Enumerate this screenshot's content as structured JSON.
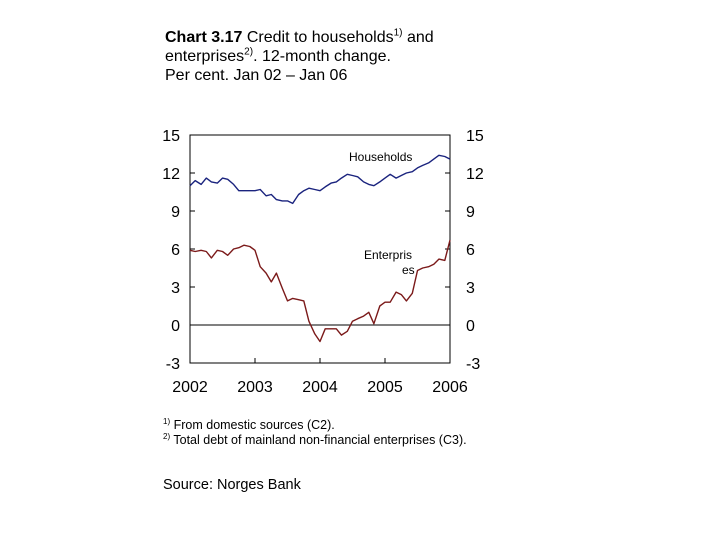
{
  "title": {
    "lead": "Chart 3.17",
    "main": "Credit to households",
    "sup1": "1)",
    "mid": "and enterprises",
    "sup2": "2)",
    "after": ". 12-month change.",
    "line2": "Per cent. Jan 02 – Jan 06"
  },
  "footnotes": [
    {
      "mark": "1)",
      "text": "From domestic sources (C2)."
    },
    {
      "mark": "2)",
      "text": "Total debt of mainland non-financial enterprises (C3)."
    }
  ],
  "source": "Source: Norges Bank",
  "chart_data": {
    "type": "line",
    "ylim": [
      -3,
      15
    ],
    "yticks": [
      "15",
      "12",
      "9",
      "6",
      "3",
      "0",
      "-3"
    ],
    "ytick_values": [
      15,
      12,
      9,
      6,
      3,
      0,
      -3
    ],
    "xlabels": [
      "2002",
      "2003",
      "2004",
      "2005",
      "2006"
    ],
    "xlim": [
      2002,
      2006
    ],
    "grid": false,
    "zero_line": true,
    "series": [
      {
        "name": "Households",
        "color": "#1a237e",
        "x": [
          2002.0,
          2002.08,
          2002.17,
          2002.25,
          2002.33,
          2002.42,
          2002.5,
          2002.58,
          2002.67,
          2002.75,
          2002.83,
          2002.92,
          2003.0,
          2003.08,
          2003.17,
          2003.25,
          2003.33,
          2003.42,
          2003.5,
          2003.58,
          2003.67,
          2003.75,
          2003.83,
          2003.92,
          2004.0,
          2004.08,
          2004.17,
          2004.25,
          2004.33,
          2004.42,
          2004.5,
          2004.58,
          2004.67,
          2004.75,
          2004.83,
          2004.92,
          2005.0,
          2005.08,
          2005.17,
          2005.25,
          2005.33,
          2005.42,
          2005.5,
          2005.58,
          2005.67,
          2005.75,
          2005.83,
          2005.92,
          2006.0
        ],
        "values": [
          11.0,
          11.4,
          11.1,
          11.6,
          11.3,
          11.2,
          11.6,
          11.5,
          11.1,
          10.6,
          10.6,
          10.6,
          10.6,
          10.7,
          10.2,
          10.3,
          9.9,
          9.8,
          9.8,
          9.6,
          10.3,
          10.6,
          10.8,
          10.7,
          10.6,
          10.9,
          11.2,
          11.3,
          11.6,
          11.9,
          11.8,
          11.7,
          11.3,
          11.1,
          11.0,
          11.3,
          11.6,
          11.9,
          11.6,
          11.8,
          12.0,
          12.1,
          12.4,
          12.6,
          12.8,
          13.1,
          13.4,
          13.3,
          13.1
        ]
      },
      {
        "name": "Enterpris es",
        "color": "#7b1a1a",
        "x": [
          2002.0,
          2002.08,
          2002.17,
          2002.25,
          2002.33,
          2002.42,
          2002.5,
          2002.58,
          2002.67,
          2002.75,
          2002.83,
          2002.92,
          2003.0,
          2003.08,
          2003.17,
          2003.25,
          2003.33,
          2003.42,
          2003.5,
          2003.58,
          2003.67,
          2003.75,
          2003.83,
          2003.92,
          2004.0,
          2004.08,
          2004.17,
          2004.25,
          2004.33,
          2004.42,
          2004.5,
          2004.58,
          2004.67,
          2004.75,
          2004.83,
          2004.92,
          2005.0,
          2005.08,
          2005.17,
          2005.25,
          2005.33,
          2005.42,
          2005.5,
          2005.58,
          2005.67,
          2005.75,
          2005.83,
          2005.92,
          2006.0
        ],
        "values": [
          5.9,
          5.8,
          5.9,
          5.8,
          5.3,
          5.9,
          5.8,
          5.5,
          6.0,
          6.1,
          6.3,
          6.2,
          5.9,
          4.6,
          4.1,
          3.4,
          4.1,
          2.9,
          1.9,
          2.1,
          2.0,
          1.9,
          0.3,
          -0.7,
          -1.3,
          -0.3,
          -0.3,
          -0.3,
          -0.8,
          -0.5,
          0.3,
          0.5,
          0.7,
          1.0,
          0.1,
          1.5,
          1.8,
          1.8,
          2.6,
          2.4,
          1.9,
          2.5,
          4.3,
          4.5,
          4.6,
          4.8,
          5.2,
          5.1,
          6.7
        ]
      }
    ]
  }
}
